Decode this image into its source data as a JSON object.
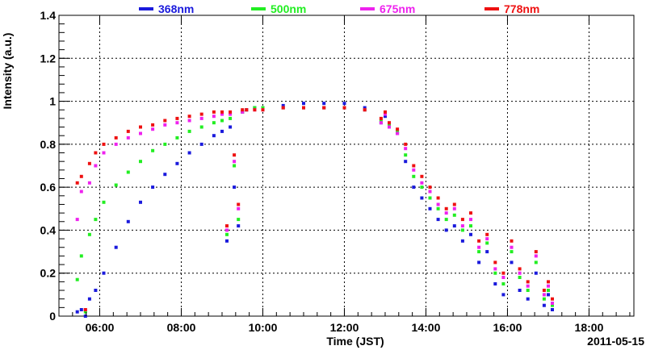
{
  "chart_data": {
    "type": "scatter",
    "title": "",
    "xlabel": "Time (JST)",
    "ylabel": "Intensity (a.u.)",
    "date_label": "2011-05-15",
    "xlim": [
      5.0,
      19.1
    ],
    "ylim": [
      0,
      1.4
    ],
    "grid": true,
    "legend_position": "top",
    "x_ticks": [
      {
        "value": 6,
        "label": "06:00"
      },
      {
        "value": 8,
        "label": "08:00"
      },
      {
        "value": 10,
        "label": "10:00"
      },
      {
        "value": 12,
        "label": "12:00"
      },
      {
        "value": 14,
        "label": "14:00"
      },
      {
        "value": 16,
        "label": "16:00"
      },
      {
        "value": 18,
        "label": "18:00"
      }
    ],
    "y_ticks": [
      {
        "value": 0,
        "label": "0"
      },
      {
        "value": 0.2,
        "label": "0.2"
      },
      {
        "value": 0.4,
        "label": "0.4"
      },
      {
        "value": 0.6,
        "label": "0.6"
      },
      {
        "value": 0.8,
        "label": "0.8"
      },
      {
        "value": 1.0,
        "label": "1"
      },
      {
        "value": 1.2,
        "label": "1.2"
      },
      {
        "value": 1.4,
        "label": "1.4"
      }
    ],
    "series": [
      {
        "name": "368nm",
        "color": "#1a1adc",
        "x": [
          5.45,
          5.55,
          5.65,
          5.75,
          5.9,
          6.1,
          6.4,
          6.7,
          7.0,
          7.3,
          7.6,
          7.9,
          8.2,
          8.5,
          8.8,
          9.0,
          9.12,
          9.2,
          9.3,
          9.4,
          9.5,
          9.6,
          9.8,
          10.0,
          10.5,
          11.0,
          11.5,
          12.0,
          12.5,
          12.9,
          13.0,
          13.1,
          13.3,
          13.5,
          13.7,
          13.9,
          14.1,
          14.3,
          14.5,
          14.7,
          14.9,
          15.1,
          15.3,
          15.5,
          15.7,
          15.9,
          16.1,
          16.3,
          16.5,
          16.7,
          16.9,
          17.0,
          17.1
        ],
        "y": [
          0.02,
          0.03,
          0.0,
          0.08,
          0.12,
          0.2,
          0.32,
          0.44,
          0.53,
          0.6,
          0.66,
          0.71,
          0.76,
          0.8,
          0.84,
          0.86,
          0.35,
          0.88,
          0.6,
          0.42,
          0.95,
          0.96,
          0.97,
          0.97,
          0.98,
          0.99,
          0.99,
          0.99,
          0.97,
          0.9,
          0.93,
          0.88,
          0.85,
          0.72,
          0.6,
          0.55,
          0.5,
          0.45,
          0.4,
          0.42,
          0.35,
          0.38,
          0.25,
          0.3,
          0.15,
          0.1,
          0.25,
          0.12,
          0.08,
          0.2,
          0.05,
          0.1,
          0.03
        ]
      },
      {
        "name": "500nm",
        "color": "#22ee22",
        "x": [
          5.45,
          5.55,
          5.65,
          5.75,
          5.9,
          6.1,
          6.4,
          6.7,
          7.0,
          7.3,
          7.6,
          7.9,
          8.2,
          8.5,
          8.8,
          9.0,
          9.12,
          9.2,
          9.3,
          9.4,
          9.5,
          9.6,
          9.8,
          10.0,
          10.5,
          11.0,
          11.5,
          12.0,
          12.5,
          12.9,
          13.0,
          13.1,
          13.3,
          13.5,
          13.7,
          13.9,
          14.1,
          14.3,
          14.5,
          14.7,
          14.9,
          15.1,
          15.3,
          15.5,
          15.7,
          15.9,
          16.1,
          16.3,
          16.5,
          16.7,
          16.9,
          17.0,
          17.1
        ],
        "y": [
          0.17,
          0.28,
          0.02,
          0.38,
          0.45,
          0.53,
          0.61,
          0.67,
          0.72,
          0.77,
          0.8,
          0.83,
          0.86,
          0.88,
          0.9,
          0.91,
          0.38,
          0.92,
          0.7,
          0.45,
          0.95,
          0.96,
          0.97,
          0.97,
          0.97,
          0.97,
          0.97,
          0.97,
          0.96,
          0.91,
          0.94,
          0.89,
          0.86,
          0.75,
          0.65,
          0.6,
          0.55,
          0.5,
          0.45,
          0.47,
          0.4,
          0.42,
          0.3,
          0.34,
          0.2,
          0.15,
          0.3,
          0.18,
          0.12,
          0.25,
          0.08,
          0.12,
          0.05
        ]
      },
      {
        "name": "675nm",
        "color": "#ee22ee",
        "x": [
          5.45,
          5.55,
          5.65,
          5.75,
          5.9,
          6.1,
          6.4,
          6.7,
          7.0,
          7.3,
          7.6,
          7.9,
          8.2,
          8.5,
          8.8,
          9.0,
          9.12,
          9.2,
          9.3,
          9.4,
          9.5,
          9.6,
          9.8,
          10.0,
          10.5,
          11.0,
          11.5,
          12.0,
          12.5,
          12.9,
          13.0,
          13.1,
          13.3,
          13.5,
          13.7,
          13.9,
          14.1,
          14.3,
          14.5,
          14.7,
          14.9,
          15.1,
          15.3,
          15.5,
          15.7,
          15.9,
          16.1,
          16.3,
          16.5,
          16.7,
          16.9,
          17.0,
          17.1
        ],
        "y": [
          0.45,
          0.58,
          0.03,
          0.62,
          0.7,
          0.76,
          0.8,
          0.83,
          0.85,
          0.87,
          0.89,
          0.9,
          0.91,
          0.92,
          0.93,
          0.94,
          0.4,
          0.94,
          0.72,
          0.5,
          0.95,
          0.96,
          0.96,
          0.96,
          0.97,
          0.97,
          0.97,
          0.97,
          0.96,
          0.9,
          0.94,
          0.88,
          0.85,
          0.78,
          0.68,
          0.62,
          0.58,
          0.52,
          0.48,
          0.5,
          0.42,
          0.45,
          0.32,
          0.36,
          0.22,
          0.18,
          0.32,
          0.2,
          0.14,
          0.28,
          0.1,
          0.14,
          0.06
        ]
      },
      {
        "name": "778nm",
        "color": "#ee1111",
        "x": [
          5.45,
          5.55,
          5.65,
          5.75,
          5.9,
          6.1,
          6.4,
          6.7,
          7.0,
          7.3,
          7.6,
          7.9,
          8.2,
          8.5,
          8.8,
          9.0,
          9.12,
          9.2,
          9.3,
          9.4,
          9.5,
          9.6,
          9.8,
          10.0,
          10.5,
          11.0,
          11.5,
          12.0,
          12.5,
          12.9,
          13.0,
          13.1,
          13.3,
          13.5,
          13.7,
          13.9,
          14.1,
          14.3,
          14.5,
          14.7,
          14.9,
          15.1,
          15.3,
          15.5,
          15.7,
          15.9,
          16.1,
          16.3,
          16.5,
          16.7,
          16.9,
          17.0,
          17.1
        ],
        "y": [
          0.62,
          0.65,
          0.03,
          0.71,
          0.76,
          0.8,
          0.83,
          0.86,
          0.88,
          0.89,
          0.91,
          0.92,
          0.93,
          0.94,
          0.95,
          0.95,
          0.42,
          0.95,
          0.75,
          0.52,
          0.96,
          0.96,
          0.96,
          0.96,
          0.97,
          0.97,
          0.97,
          0.97,
          0.96,
          0.92,
          0.95,
          0.9,
          0.87,
          0.8,
          0.7,
          0.65,
          0.6,
          0.55,
          0.5,
          0.52,
          0.45,
          0.48,
          0.35,
          0.38,
          0.25,
          0.2,
          0.35,
          0.22,
          0.16,
          0.3,
          0.12,
          0.16,
          0.08
        ]
      }
    ]
  }
}
